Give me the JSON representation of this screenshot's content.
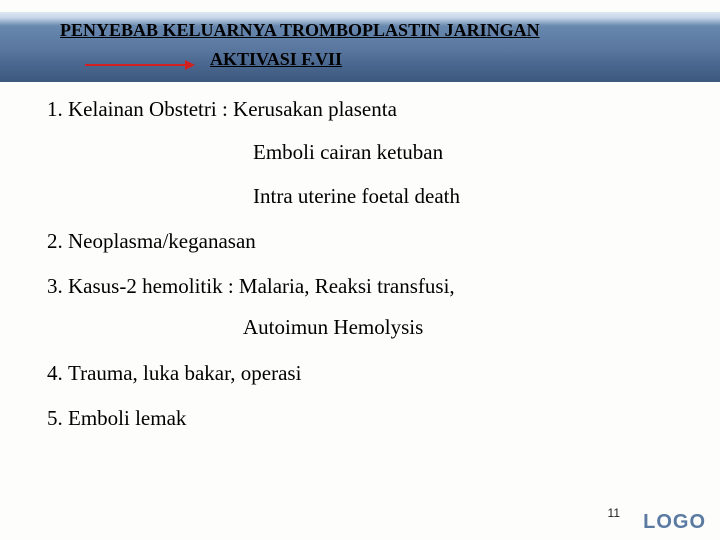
{
  "header": {
    "title_line1": "PENYEBAB KELUARNYA TROMBOPLASTIN  JARINGAN",
    "title_line2": "AKTIVASI F.VII"
  },
  "list": {
    "item1": "Kelainan Obstetri : Kerusakan plasenta",
    "item1_sub1": "Emboli cairan ketuban",
    "item1_sub2": "Intra uterine foetal death",
    "item2": "Neoplasma/keganasan",
    "item3": "Kasus-2 hemolitik : Malaria, Reaksi transfusi,",
    "item3_sub1": "Autoimun Hemolysis",
    "item4": "Trauma, luka bakar, operasi",
    "item5": " Emboli lemak"
  },
  "footer": {
    "page_number": "11",
    "logo_text": "LOGO"
  },
  "colors": {
    "arrow": "#d02020",
    "band_top": "#dbe5f0",
    "band_bottom": "#2d4a72",
    "logo": "#5a7aa2",
    "text": "#000000",
    "background": "#fdfdfc"
  }
}
